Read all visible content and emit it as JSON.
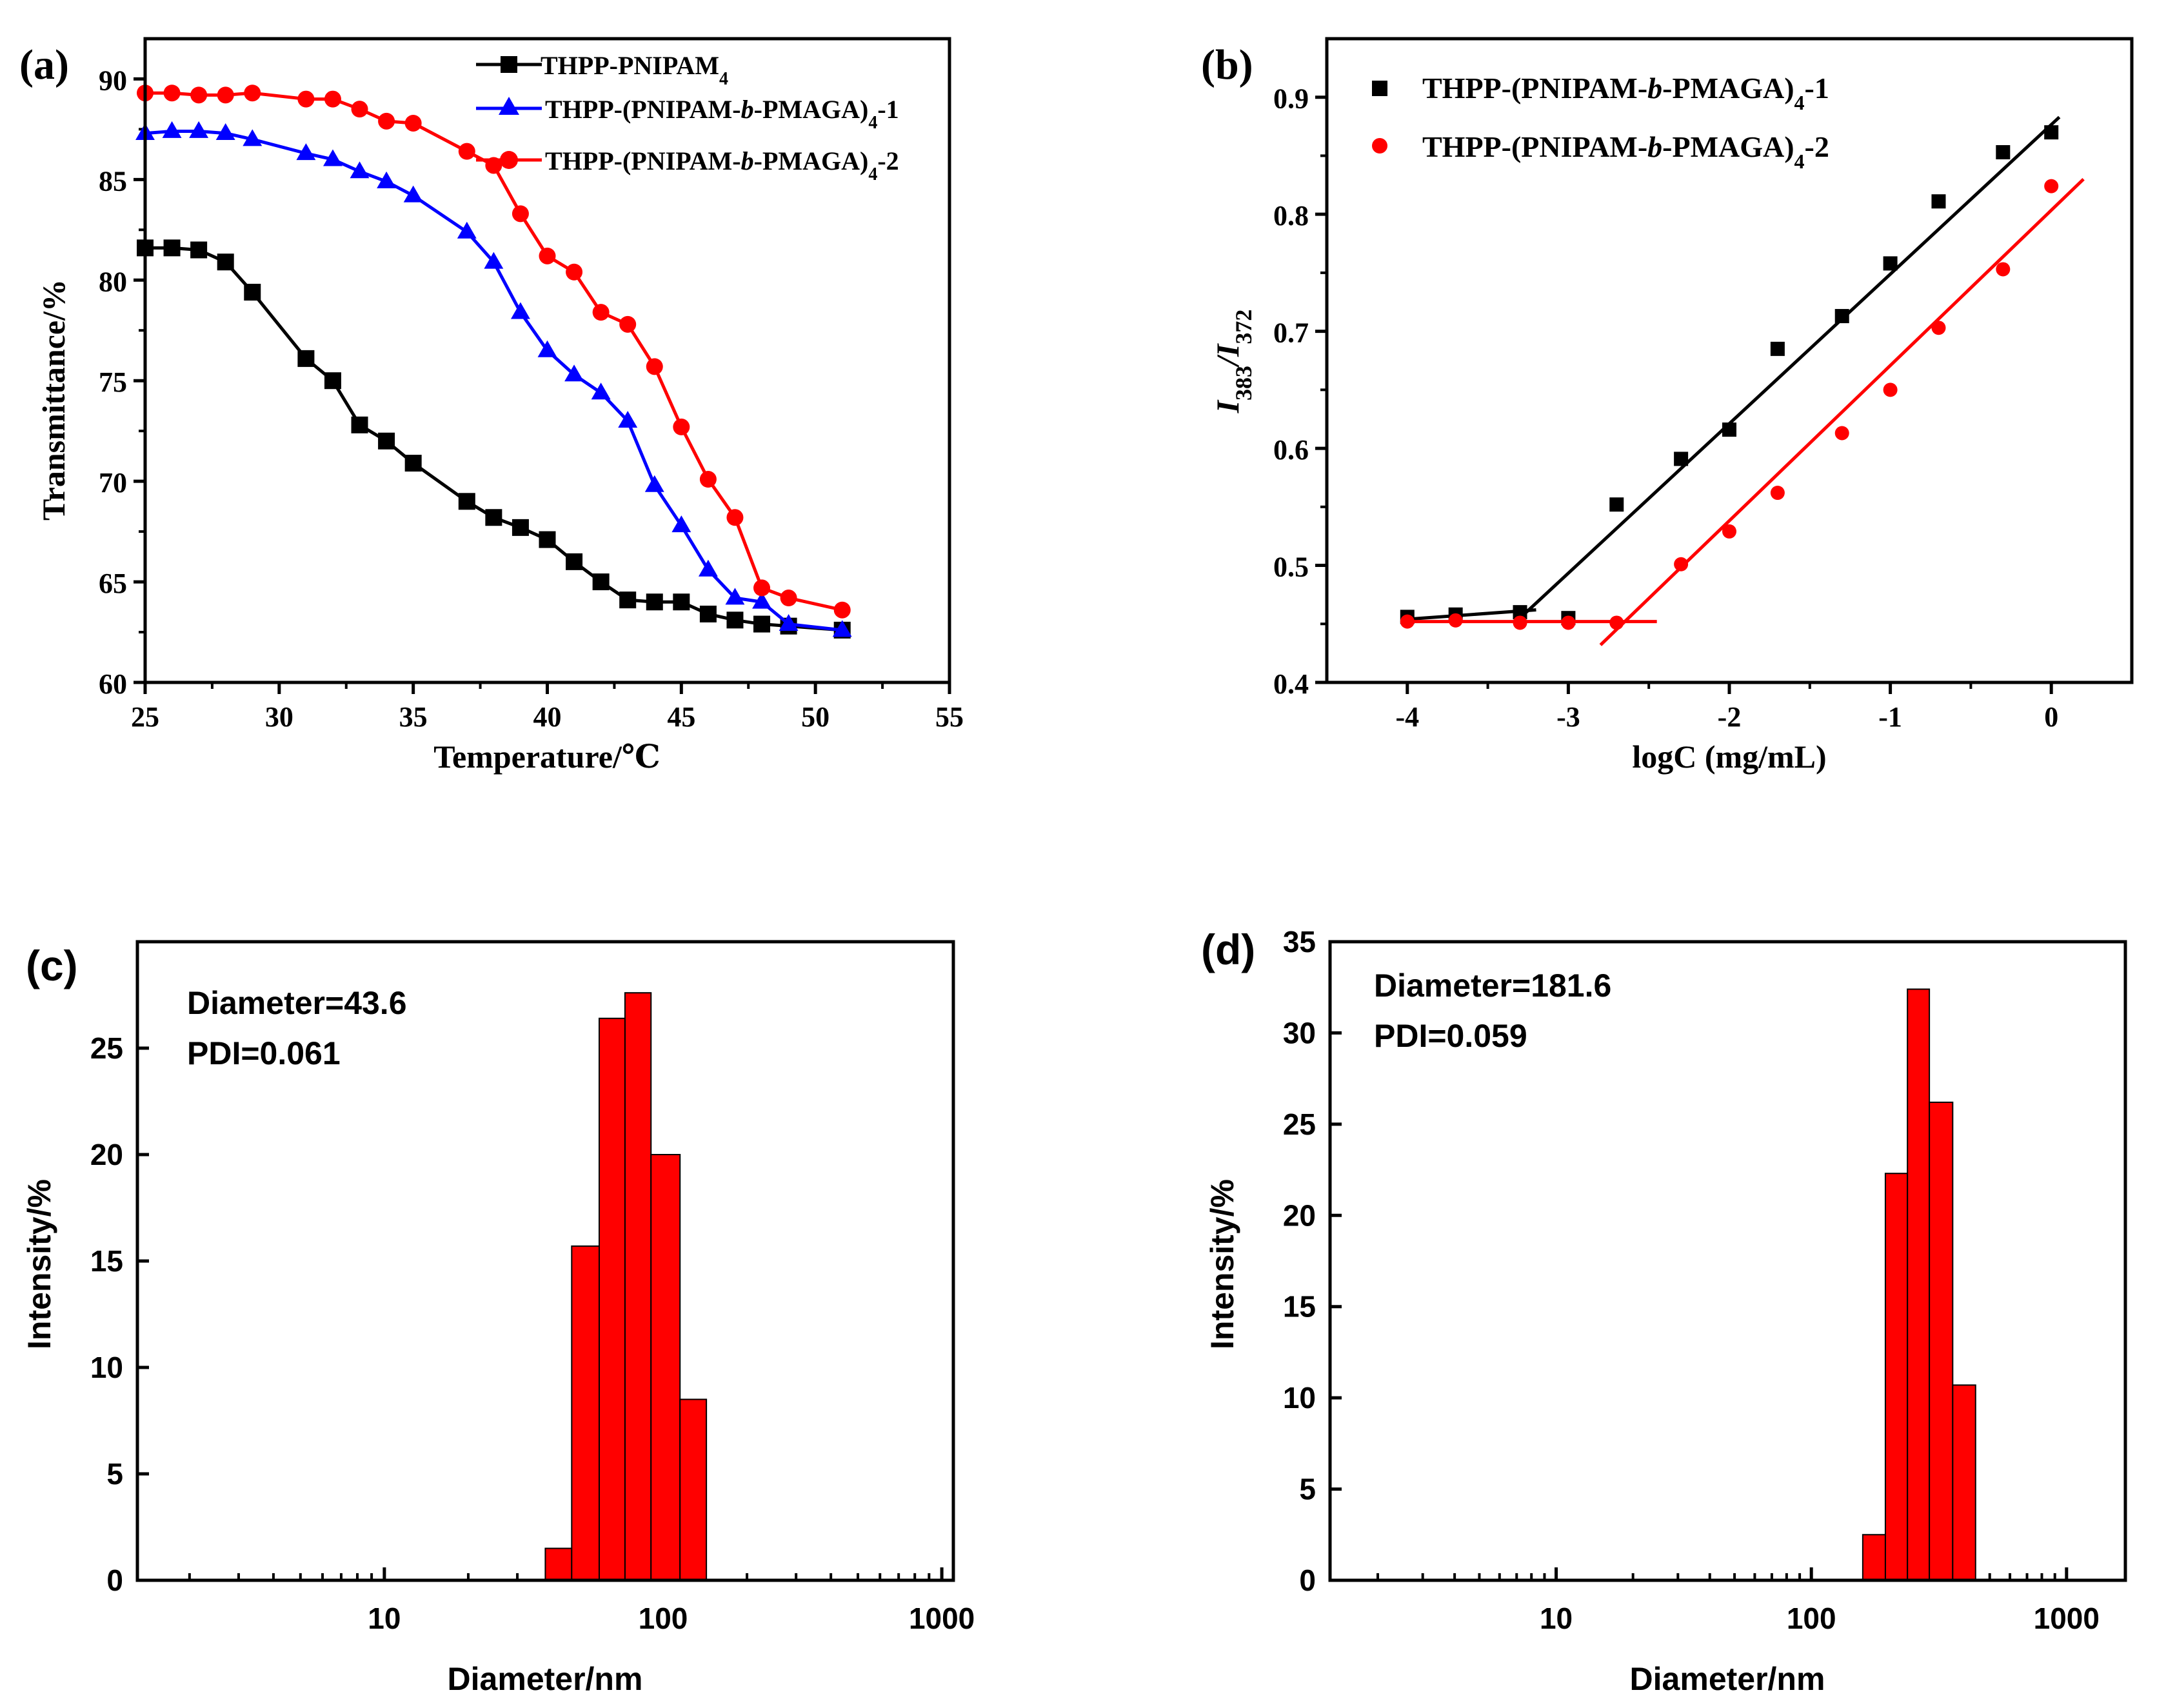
{
  "chart_data": [
    {
      "panel": "(a)",
      "type": "line",
      "xlabel": "Temperature/℃",
      "ylabel": "Transmittance/%",
      "xlim": [
        25,
        55
      ],
      "ylim": [
        60,
        92
      ],
      "xticks": [
        25,
        30,
        35,
        40,
        45,
        50,
        55
      ],
      "yticks": [
        60,
        65,
        70,
        75,
        80,
        85,
        90
      ],
      "legend_position": "top-right",
      "series": [
        {
          "name_base": "THPP-PNIPAM",
          "name_sub": "4",
          "name_tail": "",
          "color": "#000000",
          "marker": "square",
          "x": [
            25,
            26,
            27,
            28,
            29,
            31,
            32,
            33,
            34,
            35,
            37,
            38,
            39,
            40,
            41,
            42,
            43,
            44,
            45,
            46,
            47,
            48,
            49,
            51
          ],
          "y": [
            81.6,
            81.6,
            81.5,
            80.9,
            79.4,
            76.1,
            75.0,
            72.8,
            72.0,
            70.9,
            69.0,
            68.2,
            67.7,
            67.1,
            66.0,
            65.0,
            64.1,
            64.0,
            64.0,
            63.4,
            63.1,
            62.9,
            62.8,
            62.6
          ]
        },
        {
          "name_base": "THPP-(PNIPAM-",
          "name_italic": "b",
          "name_mid": "-PMAGA)",
          "name_sub": "4",
          "name_tail": "-1",
          "color": "#0000ff",
          "marker": "triangle",
          "x": [
            25,
            26,
            27,
            28,
            29,
            31,
            32,
            33,
            34,
            35,
            37,
            38,
            39,
            40,
            41,
            42,
            43,
            44,
            45,
            46,
            47,
            48,
            49,
            51
          ],
          "y": [
            87.3,
            87.4,
            87.4,
            87.3,
            87.0,
            86.3,
            86.0,
            85.4,
            84.9,
            84.2,
            82.4,
            80.9,
            78.4,
            76.5,
            75.3,
            74.4,
            73.0,
            69.8,
            67.8,
            65.6,
            64.2,
            64.0,
            62.9,
            62.6
          ]
        },
        {
          "name_base": "THPP-(PNIPAM-",
          "name_italic": "b",
          "name_mid": "-PMAGA)",
          "name_sub": "4",
          "name_tail": "-2",
          "color": "#ff0000",
          "marker": "circle",
          "x": [
            25,
            26,
            27,
            28,
            29,
            31,
            32,
            33,
            34,
            35,
            37,
            38,
            39,
            40,
            41,
            42,
            43,
            44,
            45,
            46,
            47,
            48,
            49,
            51
          ],
          "y": [
            89.3,
            89.3,
            89.2,
            89.2,
            89.3,
            89.0,
            89.0,
            88.5,
            87.9,
            87.8,
            86.4,
            85.7,
            83.3,
            81.2,
            80.4,
            78.4,
            77.8,
            75.7,
            72.7,
            70.1,
            68.2,
            64.7,
            64.2,
            63.6
          ]
        }
      ]
    },
    {
      "panel": "(b)",
      "type": "scatter",
      "xlabel": "logC (mg/mL)",
      "ylabel_prefix": "I",
      "ylabel_sub1": "383",
      "ylabel_sep": "/I",
      "ylabel_sub2": "372",
      "xlim": [
        -4.5,
        0.5
      ],
      "ylim": [
        0.4,
        0.95
      ],
      "xticks": [
        -4,
        -3,
        -2,
        -1,
        0
      ],
      "yticks": [
        0.4,
        0.5,
        0.6,
        0.7,
        0.8,
        0.9
      ],
      "legend_position": "top-left",
      "series": [
        {
          "name_base": "THPP-(PNIPAM-",
          "name_italic": "b",
          "name_mid": "-PMAGA)",
          "name_sub": "4",
          "name_tail": "-1",
          "color": "#000000",
          "marker": "square",
          "x": [
            -4.0,
            -3.7,
            -3.3,
            -3.0,
            -2.7,
            -2.3,
            -2.0,
            -1.7,
            -1.3,
            -1.0,
            -0.7,
            -0.3,
            0.0
          ],
          "y": [
            0.456,
            0.458,
            0.46,
            0.455,
            0.552,
            0.591,
            0.616,
            0.685,
            0.713,
            0.758,
            0.811,
            0.853,
            0.87
          ],
          "fit_lines": [
            {
              "x": [
                -4.0,
                -3.2
              ],
              "y": [
                0.454,
                0.462
              ]
            },
            {
              "x": [
                -3.3,
                0.05
              ],
              "y": [
                0.455,
                0.883
              ]
            }
          ]
        },
        {
          "name_base": "THPP-(PNIPAM-",
          "name_italic": "b",
          "name_mid": "-PMAGA)",
          "name_sub": "4",
          "name_tail": "-2",
          "color": "#ff0000",
          "marker": "circle",
          "x": [
            -4.0,
            -3.7,
            -3.3,
            -3.0,
            -2.7,
            -2.3,
            -2.0,
            -1.7,
            -1.3,
            -1.0,
            -0.7,
            -0.3,
            0.0
          ],
          "y": [
            0.452,
            0.453,
            0.451,
            0.451,
            0.451,
            0.501,
            0.529,
            0.562,
            0.613,
            0.65,
            0.703,
            0.753,
            0.824
          ],
          "fit_lines": [
            {
              "x": [
                -4.0,
                -2.45
              ],
              "y": [
                0.452,
                0.452
              ]
            },
            {
              "x": [
                -2.8,
                0.2
              ],
              "y": [
                0.432,
                0.83
              ]
            }
          ]
        }
      ]
    },
    {
      "panel": "(c)",
      "type": "bar",
      "xscale": "log",
      "xlabel": "Diameter/nm",
      "ylabel": "Intensity/%",
      "xlim": [
        1.3,
        1100
      ],
      "ylim": [
        0,
        30
      ],
      "xticks": [
        10,
        100,
        1000
      ],
      "yticks": [
        0,
        5,
        10,
        15,
        20,
        25
      ],
      "annotation_diameter": "Diameter=43.6",
      "annotation_pdi": "PDI=0.061",
      "color": "#ff0000",
      "bin_edges": [
        37.8,
        47.0,
        59.0,
        73.0,
        90.5,
        115.0,
        143.0
      ],
      "values": [
        1.5,
        15.7,
        26.4,
        27.6,
        20.0,
        8.5
      ]
    },
    {
      "panel": "(d)",
      "type": "bar",
      "xscale": "log",
      "xlabel": "Diameter/nm",
      "ylabel": "Intensity/%",
      "xlim": [
        1.3,
        1700
      ],
      "ylim": [
        0,
        35
      ],
      "xticks": [
        10,
        100,
        1000
      ],
      "yticks": [
        0,
        5,
        10,
        15,
        20,
        25,
        30,
        35
      ],
      "annotation_diameter": "Diameter=181.6",
      "annotation_pdi": "PDI=0.059",
      "color": "#ff0000",
      "bin_edges": [
        159.0,
        195.0,
        238.0,
        290.0,
        358.0,
        440.0
      ],
      "values": [
        2.5,
        22.3,
        32.4,
        26.2,
        10.7
      ]
    }
  ]
}
